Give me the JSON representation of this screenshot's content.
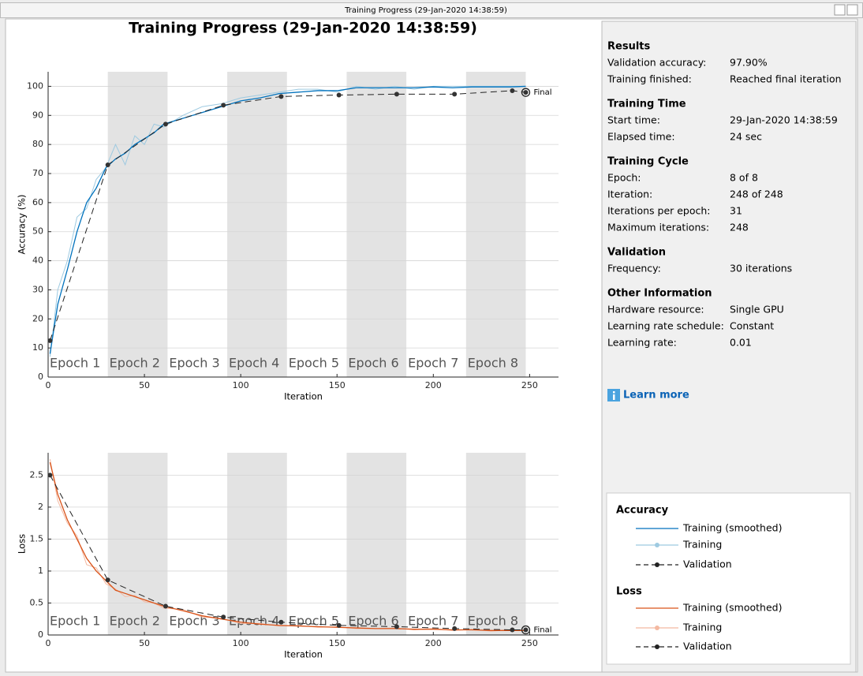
{
  "window_title": "Training Progress (29-Jan-2020 14:38:59)",
  "figure_title": "Training Progress (29-Jan-2020 14:38:59)",
  "chart_data": [
    {
      "type": "line",
      "legend_title": "Accuracy",
      "ylabel": "Accuracy (%)",
      "xlabel": "Iteration",
      "xlim": [
        0,
        265
      ],
      "xticks": [
        0,
        50,
        100,
        150,
        200,
        250
      ],
      "ylim": [
        0,
        105
      ],
      "yticks": [
        0,
        10,
        20,
        30,
        40,
        50,
        60,
        70,
        80,
        90,
        100
      ],
      "grid": true,
      "epochs": [
        "Epoch 1",
        "Epoch 2",
        "Epoch 3",
        "Epoch 4",
        "Epoch 5",
        "Epoch 6",
        "Epoch 7",
        "Epoch 8"
      ],
      "final_label": "Final",
      "series": [
        {
          "name": "Training (smoothed)",
          "color": "#0072bd",
          "dashed": false,
          "marker": false,
          "x": [
            1,
            5,
            10,
            15,
            20,
            25,
            30,
            35,
            40,
            45,
            50,
            55,
            60,
            70,
            80,
            90,
            100,
            110,
            120,
            130,
            140,
            150,
            160,
            170,
            180,
            190,
            200,
            210,
            220,
            230,
            240,
            248
          ],
          "values": [
            8,
            25,
            37,
            50,
            60,
            65,
            72,
            75,
            77,
            80,
            82,
            84,
            87,
            89,
            91,
            93,
            95,
            96,
            97.5,
            98,
            98.5,
            98.5,
            99.5,
            99.5,
            99.5,
            99.5,
            99.8,
            99.5,
            99.8,
            99.8,
            99.8,
            100
          ]
        },
        {
          "name": "Training",
          "color": "#9ecae1",
          "dashed": false,
          "marker": false,
          "x": [
            1,
            5,
            10,
            15,
            20,
            25,
            30,
            35,
            40,
            45,
            50,
            55,
            60,
            70,
            80,
            90,
            100,
            110,
            120,
            130,
            140,
            150,
            160,
            170,
            180,
            190,
            200,
            210,
            220,
            230,
            240,
            248
          ],
          "values": [
            7,
            30,
            40,
            55,
            58,
            68,
            72,
            80,
            73,
            83,
            80,
            87,
            86,
            90,
            93,
            94,
            96,
            97,
            98,
            99,
            99,
            98,
            100,
            99,
            100,
            99,
            100,
            100,
            100,
            100,
            100,
            100
          ]
        },
        {
          "name": "Validation",
          "color": "#222222",
          "dashed": true,
          "marker": true,
          "x": [
            1,
            31,
            61,
            91,
            121,
            151,
            181,
            211,
            241,
            248
          ],
          "values": [
            12.5,
            73,
            87,
            93.5,
            96.5,
            97,
            97.3,
            97.3,
            98.5,
            97.9
          ]
        }
      ]
    },
    {
      "type": "line",
      "legend_title": "Loss",
      "ylabel": "Loss",
      "xlabel": "Iteration",
      "xlim": [
        0,
        265
      ],
      "xticks": [
        0,
        50,
        100,
        150,
        200,
        250
      ],
      "ylim": [
        0,
        2.85
      ],
      "yticks": [
        0,
        0.5,
        1,
        1.5,
        2,
        2.5
      ],
      "grid": true,
      "epochs": [
        "Epoch 1",
        "Epoch 2",
        "Epoch 3",
        "Epoch 4",
        "Epoch 5",
        "Epoch 6",
        "Epoch 7",
        "Epoch 8"
      ],
      "final_label": "Final",
      "series": [
        {
          "name": "Training (smoothed)",
          "color": "#d95319",
          "dashed": false,
          "marker": false,
          "x": [
            1,
            5,
            10,
            15,
            20,
            25,
            30,
            35,
            40,
            45,
            50,
            55,
            60,
            70,
            80,
            90,
            100,
            110,
            120,
            130,
            140,
            150,
            160,
            170,
            180,
            190,
            200,
            210,
            220,
            230,
            240,
            248
          ],
          "values": [
            2.7,
            2.2,
            1.8,
            1.5,
            1.2,
            1.0,
            0.85,
            0.7,
            0.65,
            0.6,
            0.55,
            0.5,
            0.45,
            0.38,
            0.3,
            0.25,
            0.2,
            0.17,
            0.15,
            0.14,
            0.13,
            0.12,
            0.11,
            0.1,
            0.1,
            0.09,
            0.09,
            0.08,
            0.08,
            0.07,
            0.07,
            0.07
          ]
        },
        {
          "name": "Training",
          "color": "#f4b9a1",
          "dashed": false,
          "marker": false,
          "x": [
            1,
            5,
            10,
            15,
            20,
            25,
            30,
            35,
            40,
            45,
            50,
            55,
            60,
            70,
            80,
            90,
            100,
            110,
            120,
            130,
            140,
            150,
            160,
            170,
            180,
            190,
            200,
            210,
            220,
            230,
            240,
            248
          ],
          "values": [
            2.75,
            2.1,
            1.75,
            1.55,
            1.1,
            1.05,
            0.8,
            0.72,
            0.6,
            0.62,
            0.52,
            0.5,
            0.42,
            0.4,
            0.28,
            0.26,
            0.18,
            0.18,
            0.14,
            0.15,
            0.12,
            0.13,
            0.1,
            0.1,
            0.11,
            0.08,
            0.1,
            0.07,
            0.09,
            0.06,
            0.08,
            0.07
          ]
        },
        {
          "name": "Validation",
          "color": "#222222",
          "dashed": true,
          "marker": true,
          "x": [
            1,
            31,
            61,
            91,
            121,
            151,
            181,
            211,
            241,
            248
          ],
          "values": [
            2.5,
            0.86,
            0.45,
            0.28,
            0.2,
            0.15,
            0.13,
            0.1,
            0.08,
            0.08
          ]
        }
      ]
    }
  ],
  "info": {
    "sections": [
      {
        "heading": "Results",
        "rows": [
          [
            "Validation accuracy:",
            "97.90%"
          ],
          [
            "Training finished:",
            "Reached final iteration"
          ]
        ]
      },
      {
        "heading": "Training Time",
        "rows": [
          [
            "Start time:",
            "29-Jan-2020 14:38:59"
          ],
          [
            "Elapsed time:",
            "24 sec"
          ]
        ]
      },
      {
        "heading": "Training Cycle",
        "rows": [
          [
            "Epoch:",
            "8 of 8"
          ],
          [
            "Iteration:",
            "248 of 248"
          ],
          [
            "Iterations per epoch:",
            "31"
          ],
          [
            "Maximum iterations:",
            "248"
          ]
        ]
      },
      {
        "heading": "Validation",
        "rows": [
          [
            "Frequency:",
            "30 iterations"
          ]
        ]
      },
      {
        "heading": "Other Information",
        "rows": [
          [
            "Hardware resource:",
            "Single GPU"
          ],
          [
            "Learning rate schedule:",
            "Constant"
          ],
          [
            "Learning rate:",
            "0.01"
          ]
        ]
      }
    ],
    "learn_more": "Learn more"
  }
}
